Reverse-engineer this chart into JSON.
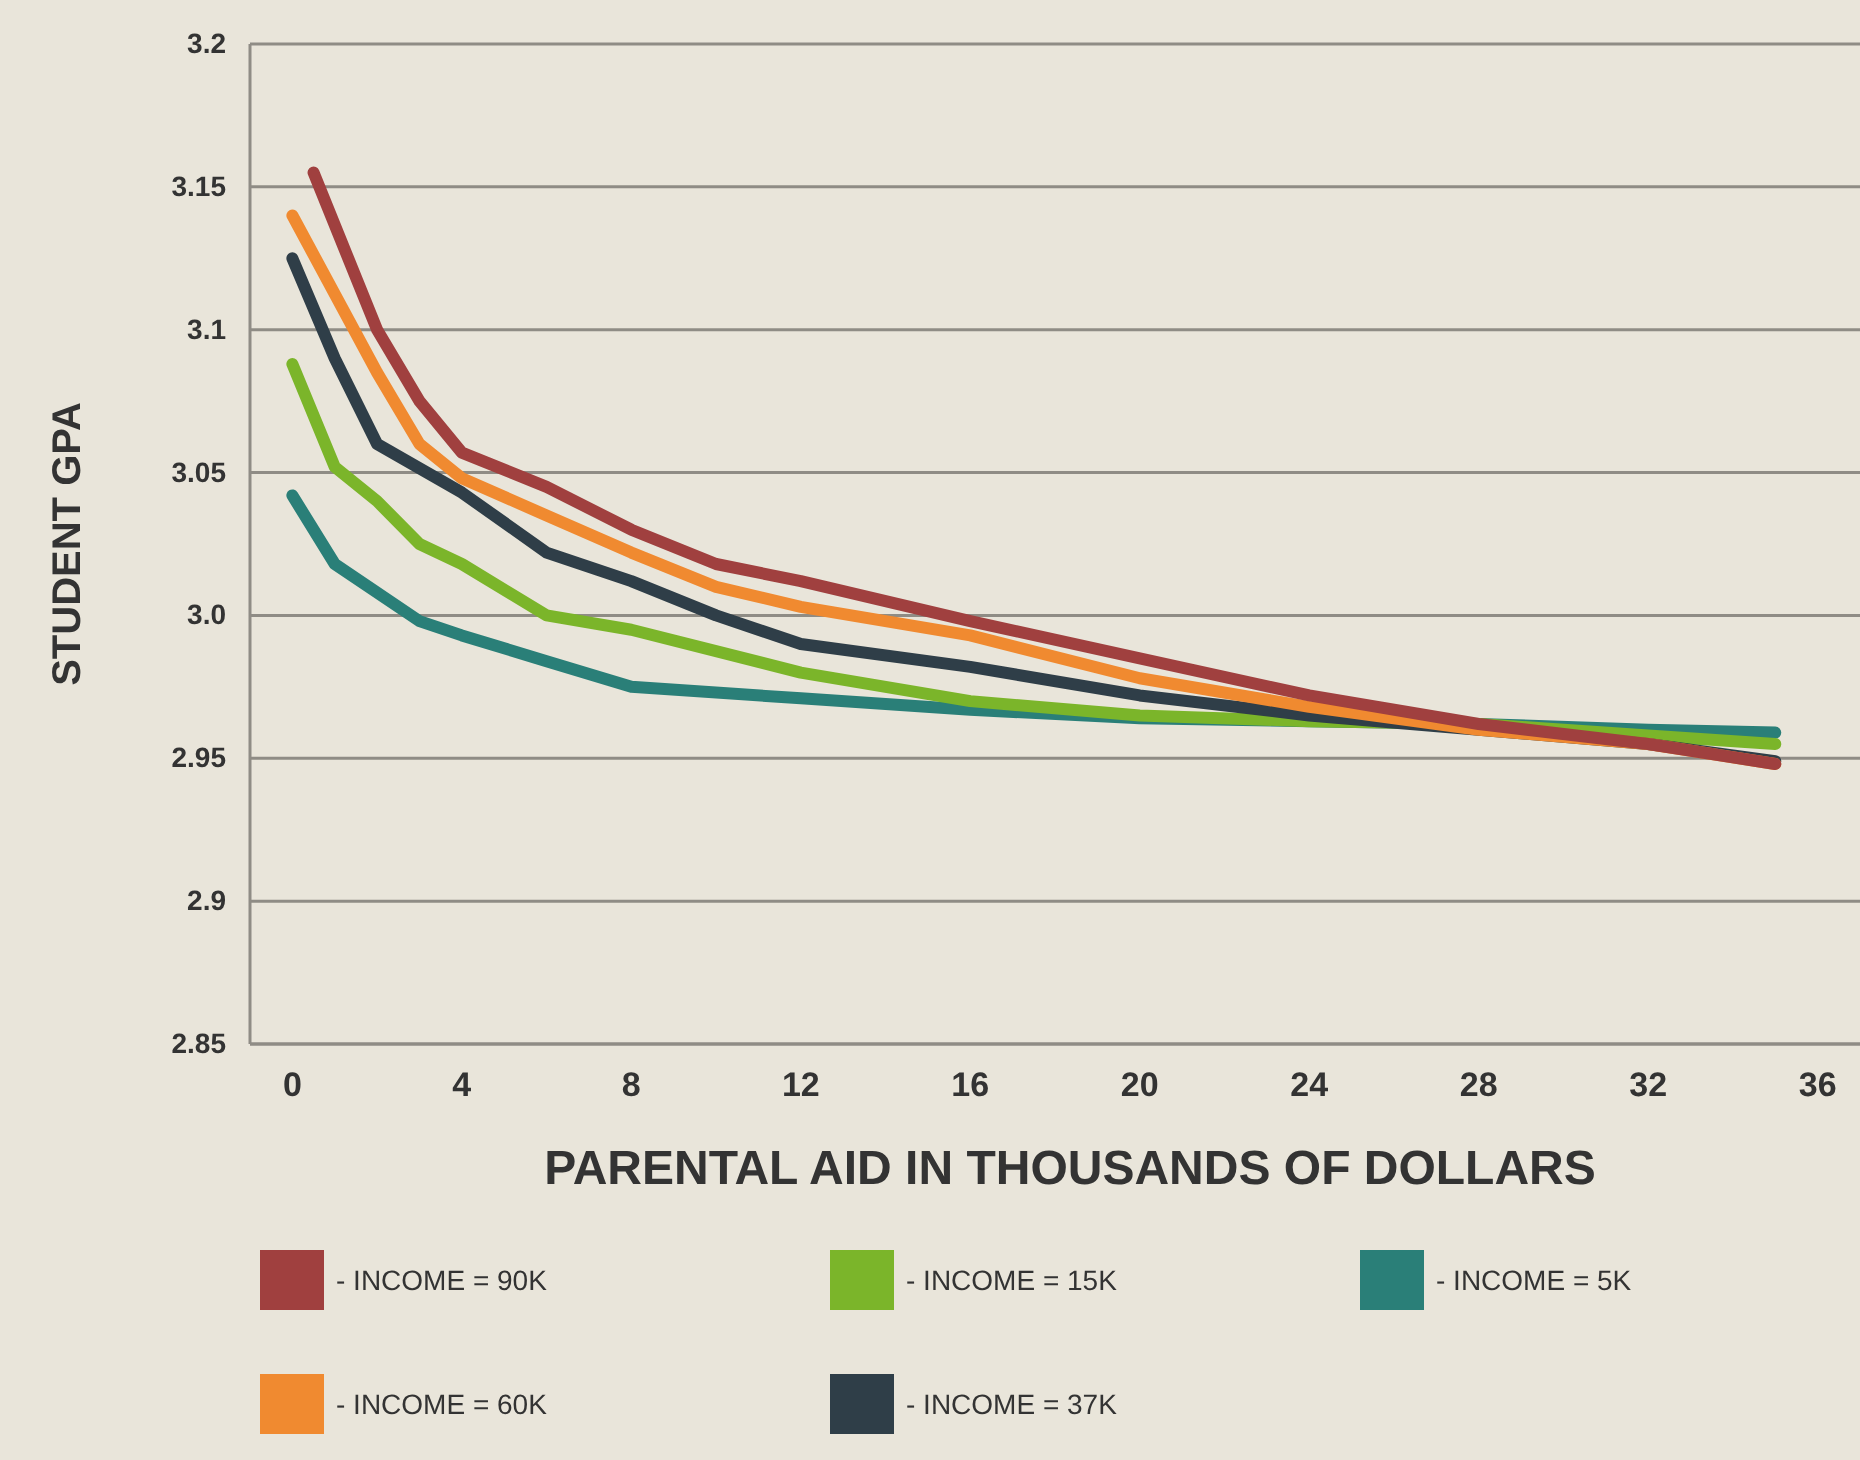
{
  "chart_data": {
    "type": "line",
    "xlabel": "PARENTAL AID IN THOUSANDS OF DOLLARS",
    "ylabel": "STUDENT GPA",
    "xlim": [
      -1,
      37
    ],
    "xticks": [
      0,
      4,
      8,
      12,
      16,
      20,
      24,
      28,
      32,
      36
    ],
    "ylim": [
      2.85,
      3.2
    ],
    "yticks": [
      2.85,
      2.9,
      2.95,
      {
        "value": 3.0,
        "label": "3.0"
      },
      3.05,
      3.1,
      3.15,
      3.2
    ],
    "grid": "y",
    "legend": "bottom",
    "marker": "none",
    "line_style": "solid",
    "series": [
      {
        "name": "- INCOME = 90K",
        "color": "#a0403f",
        "x": [
          0.5,
          2,
          3,
          4,
          6,
          8,
          10,
          12,
          16,
          20,
          24,
          28,
          32,
          35
        ],
        "values": [
          3.155,
          3.1,
          3.075,
          3.057,
          3.045,
          3.03,
          3.018,
          3.012,
          2.998,
          2.985,
          2.972,
          2.962,
          2.955,
          2.948
        ]
      },
      {
        "name": "- INCOME = 60K",
        "color": "#f08a30",
        "x": [
          0,
          2,
          3,
          4,
          6,
          8,
          10,
          12,
          16,
          20,
          24,
          28,
          32,
          35
        ],
        "values": [
          3.14,
          3.085,
          3.06,
          3.048,
          3.035,
          3.022,
          3.01,
          3.003,
          2.993,
          2.978,
          2.968,
          2.96,
          2.955,
          2.948
        ]
      },
      {
        "name": "- INCOME = 37K",
        "color": "#2f3e48",
        "x": [
          0,
          1,
          2,
          4,
          6,
          8,
          10,
          12,
          16,
          20,
          24,
          28,
          32,
          35
        ],
        "values": [
          3.125,
          3.09,
          3.06,
          3.043,
          3.022,
          3.012,
          3.0,
          2.99,
          2.982,
          2.972,
          2.965,
          2.96,
          2.955,
          2.949
        ]
      },
      {
        "name": "- INCOME = 15K",
        "color": "#7bb52a",
        "x": [
          0,
          1,
          2,
          3,
          4,
          6,
          8,
          12,
          16,
          20,
          24,
          28,
          32,
          35
        ],
        "values": [
          3.088,
          3.052,
          3.04,
          3.025,
          3.018,
          3.0,
          2.995,
          2.98,
          2.97,
          2.965,
          2.963,
          2.962,
          2.958,
          2.955
        ]
      },
      {
        "name": "- INCOME = 5K",
        "color": "#2a7f78",
        "x": [
          0,
          1,
          3,
          4,
          6,
          8,
          12,
          16,
          20,
          24,
          28,
          32,
          35
        ],
        "values": [
          3.042,
          3.018,
          2.998,
          2.993,
          2.984,
          2.975,
          2.971,
          2.967,
          2.964,
          2.963,
          2.962,
          2.96,
          2.959
        ]
      }
    ]
  }
}
